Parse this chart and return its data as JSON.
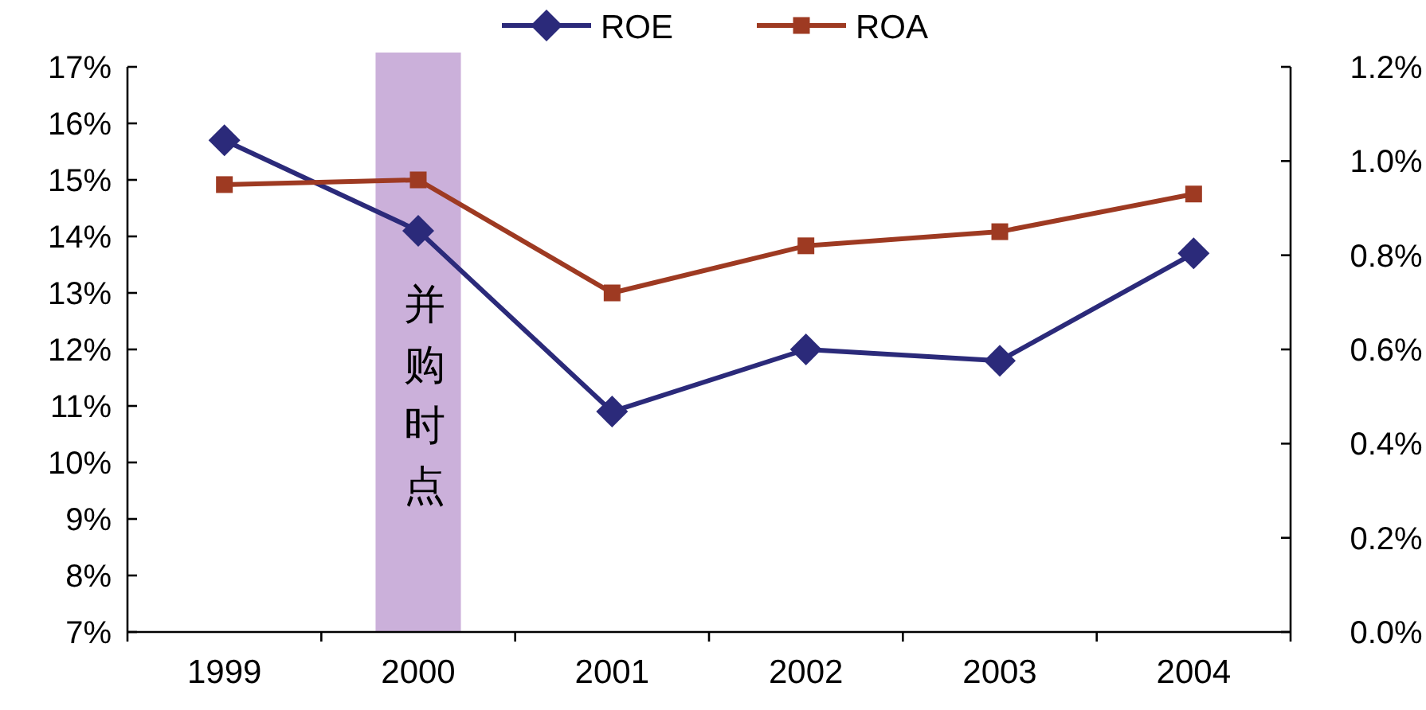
{
  "chart_data": {
    "type": "line",
    "categories": [
      "1999",
      "2000",
      "2001",
      "2002",
      "2003",
      "2004"
    ],
    "series": [
      {
        "name": "ROE",
        "color": "#2b2a7a",
        "marker": "diamond",
        "values": [
          15.7,
          14.1,
          10.9,
          12.0,
          11.8,
          13.7
        ]
      },
      {
        "name": "ROA",
        "color": "#9e3a22",
        "marker": "square",
        "axis": "y2",
        "values": [
          0.95,
          0.96,
          0.72,
          0.82,
          0.85,
          0.93
        ]
      }
    ],
    "ylim": [
      7,
      17
    ],
    "yticks": [
      {
        "value": 7,
        "label": "7%"
      },
      {
        "value": 8,
        "label": "8%"
      },
      {
        "value": 9,
        "label": "9%"
      },
      {
        "value": 10,
        "label": "10%"
      },
      {
        "value": 11,
        "label": "11%"
      },
      {
        "value": 12,
        "label": "12%"
      },
      {
        "value": 13,
        "label": "13%"
      },
      {
        "value": 14,
        "label": "14%"
      },
      {
        "value": 15,
        "label": "15%"
      },
      {
        "value": 16,
        "label": "16%"
      },
      {
        "value": 17,
        "label": "17%"
      }
    ],
    "y2lim": [
      0,
      1.2
    ],
    "y2ticks": [
      {
        "value": 0,
        "label": "0.0%"
      },
      {
        "value": 0.2,
        "label": "0.2%"
      },
      {
        "value": 0.4,
        "label": "0.4%"
      },
      {
        "value": 0.6,
        "label": "0.6%"
      },
      {
        "value": 0.8,
        "label": "0.8%"
      },
      {
        "value": 1.0,
        "label": "1.0%"
      },
      {
        "value": 1.2,
        "label": "1.2%"
      }
    ],
    "bands": [
      {
        "axis": "x",
        "from": "2000",
        "to": "2000",
        "label": "并购时点",
        "color": "#cbb0da"
      }
    ],
    "legend": "top",
    "grid": false,
    "line_style": "solid"
  }
}
